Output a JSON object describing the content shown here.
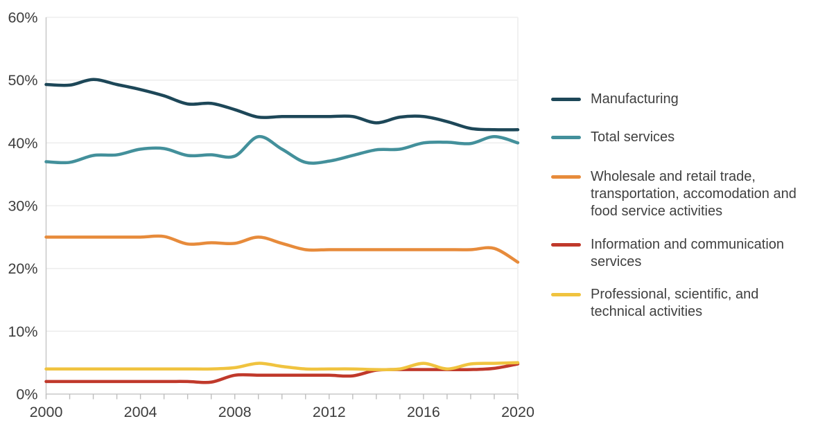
{
  "chart_data": {
    "type": "line",
    "title": "",
    "xlabel": "",
    "ylabel": "",
    "x": [
      2000,
      2001,
      2002,
      2003,
      2004,
      2005,
      2006,
      2007,
      2008,
      2009,
      2010,
      2011,
      2012,
      2013,
      2014,
      2015,
      2016,
      2017,
      2018,
      2019,
      2020
    ],
    "xlim": [
      2000,
      2020
    ],
    "ylim": [
      0,
      60
    ],
    "grid": "horizontal",
    "legend_position": "right",
    "xticks": [
      {
        "v": 2000,
        "label": "2000"
      },
      {
        "v": 2004,
        "label": "2004"
      },
      {
        "v": 2008,
        "label": "2008"
      },
      {
        "v": 2012,
        "label": "2012"
      },
      {
        "v": 2016,
        "label": "2016"
      },
      {
        "v": 2020,
        "label": "2020"
      }
    ],
    "minor_xtick_step": 1,
    "yticks": [
      {
        "v": 0,
        "label": "0%"
      },
      {
        "v": 10,
        "label": "10%"
      },
      {
        "v": 20,
        "label": "20%"
      },
      {
        "v": 30,
        "label": "30%"
      },
      {
        "v": 40,
        "label": "40%"
      },
      {
        "v": 50,
        "label": "50%"
      },
      {
        "v": 60,
        "label": "60%"
      }
    ],
    "series": [
      {
        "name": "Manufacturing",
        "color": "#1d4758",
        "values": [
          49.3,
          49.2,
          50.1,
          49.3,
          48.5,
          47.5,
          46.2,
          46.3,
          45.3,
          44.1,
          44.2,
          44.2,
          44.2,
          44.2,
          43.2,
          44.1,
          44.2,
          43.4,
          42.3,
          42.1,
          42.1
        ]
      },
      {
        "name": "Total services",
        "color": "#43909b",
        "values": [
          37,
          36.9,
          38,
          38.1,
          39,
          39.1,
          38,
          38.1,
          37.9,
          41,
          39,
          36.9,
          37.1,
          38,
          38.9,
          39,
          40,
          40.1,
          39.9,
          41,
          40
        ]
      },
      {
        "name": "Wholesale and retail trade, transportation, accomodation and food service activities",
        "color": "#e78b3b",
        "values": [
          25,
          25,
          25,
          25,
          25,
          25.1,
          23.9,
          24.1,
          24,
          25,
          24,
          23,
          23,
          23,
          23,
          23,
          23,
          23,
          23,
          23.2,
          21
        ]
      },
      {
        "name": "Information and communication services",
        "color": "#c0392b",
        "values": [
          2,
          2,
          2,
          2,
          2,
          2,
          2,
          1.9,
          3,
          3,
          3,
          3,
          3,
          2.9,
          3.8,
          3.9,
          3.9,
          3.9,
          3.9,
          4.1,
          4.8
        ]
      },
      {
        "name": "Professional, scientific, and technical activities",
        "color": "#f0c33f",
        "values": [
          4,
          4,
          4,
          4,
          4,
          4,
          4,
          4,
          4.2,
          4.9,
          4.4,
          4,
          4,
          4,
          3.9,
          4,
          4.9,
          4,
          4.8,
          4.9,
          5
        ]
      }
    ],
    "axis_text_color": "#3d3d3d",
    "axis_line_color": "#c8c8c8",
    "tick_color": "#bdbdbd",
    "grid_color": "#ededed",
    "plot_border_color": "#f1f1f1"
  }
}
